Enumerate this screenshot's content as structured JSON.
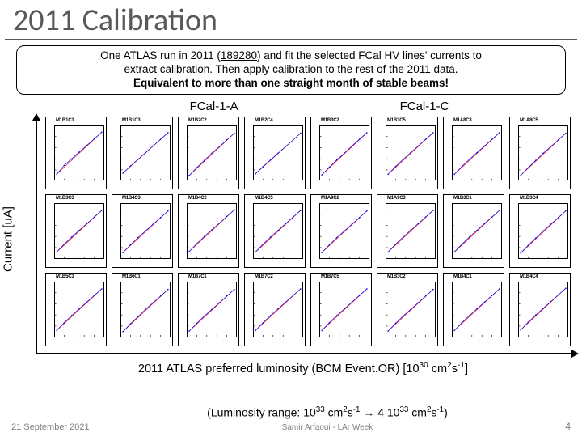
{
  "title": "2011 Calibration",
  "description": {
    "line1a": "One ATLAS run in 2011 (",
    "run": "189280",
    "line1b": ") and fit the selected FCal HV lines' currents to",
    "line2": "extract calibration. Then apply calibration to the rest of the 2011 data.",
    "line3": "Equivalent to more than one straight month of stable beams!"
  },
  "sections": {
    "left": "FCal-1-A",
    "right": "FCal-1-C"
  },
  "yaxis_label": "Current [uA]",
  "xaxis_title_a": "2011 ATLAS preferred luminosity (BCM Event.OR)  [10",
  "xaxis_title_b": " cm",
  "xaxis_title_c": "s",
  "xaxis_title_d": "]",
  "lumi_range": {
    "a": "(Luminosity range: 10",
    "b": " cm",
    "c": "s",
    "d": " → 4 10",
    "e": " cm",
    "f": "s",
    "g": ")"
  },
  "footer": {
    "date": "21 September 2021",
    "author": "Samir Arfaoui - LAr Week",
    "page": "4"
  },
  "plots": [
    {
      "label": "M1B1C1",
      "data": [
        [
          0.05,
          0.12
        ],
        [
          0.2,
          0.28
        ],
        [
          0.35,
          0.4
        ],
        [
          0.5,
          0.52
        ],
        [
          0.65,
          0.64
        ],
        [
          0.8,
          0.76
        ],
        [
          0.95,
          0.88
        ]
      ]
    },
    {
      "label": "M1B1C3",
      "data": [
        [
          0.05,
          0.14
        ],
        [
          0.2,
          0.27
        ],
        [
          0.35,
          0.39
        ],
        [
          0.5,
          0.51
        ],
        [
          0.65,
          0.63
        ],
        [
          0.8,
          0.75
        ],
        [
          0.95,
          0.87
        ]
      ]
    },
    {
      "label": "M1B2C2",
      "data": [
        [
          0.05,
          0.1
        ],
        [
          0.2,
          0.24
        ],
        [
          0.35,
          0.37
        ],
        [
          0.5,
          0.5
        ],
        [
          0.65,
          0.62
        ],
        [
          0.8,
          0.74
        ],
        [
          0.95,
          0.86
        ]
      ]
    },
    {
      "label": "M1B2C4",
      "data": [
        [
          0.05,
          0.13
        ],
        [
          0.2,
          0.26
        ],
        [
          0.35,
          0.38
        ],
        [
          0.5,
          0.5
        ],
        [
          0.65,
          0.62
        ],
        [
          0.8,
          0.74
        ],
        [
          0.95,
          0.86
        ]
      ]
    },
    {
      "label": "M1B3C2",
      "data": [
        [
          0.05,
          0.11
        ],
        [
          0.2,
          0.25
        ],
        [
          0.35,
          0.38
        ],
        [
          0.5,
          0.5
        ],
        [
          0.65,
          0.63
        ],
        [
          0.8,
          0.75
        ],
        [
          0.95,
          0.87
        ]
      ]
    },
    {
      "label": "M1B3C5",
      "data": [
        [
          0.05,
          0.12
        ],
        [
          0.2,
          0.26
        ],
        [
          0.35,
          0.39
        ],
        [
          0.5,
          0.51
        ],
        [
          0.65,
          0.63
        ],
        [
          0.8,
          0.75
        ],
        [
          0.95,
          0.87
        ]
      ]
    },
    {
      "label": "M1A8C3",
      "data": [
        [
          0.05,
          0.12
        ],
        [
          0.2,
          0.26
        ],
        [
          0.35,
          0.39
        ],
        [
          0.5,
          0.51
        ],
        [
          0.65,
          0.63
        ],
        [
          0.8,
          0.75
        ],
        [
          0.95,
          0.87
        ]
      ]
    },
    {
      "label": "M1A8C5",
      "data": [
        [
          0.05,
          0.1
        ],
        [
          0.2,
          0.24
        ],
        [
          0.35,
          0.37
        ],
        [
          0.5,
          0.5
        ],
        [
          0.65,
          0.62
        ],
        [
          0.8,
          0.74
        ],
        [
          0.95,
          0.86
        ]
      ]
    },
    {
      "label": "M1B3C3",
      "data": [
        [
          0.05,
          0.12
        ],
        [
          0.2,
          0.26
        ],
        [
          0.35,
          0.39
        ],
        [
          0.5,
          0.51
        ],
        [
          0.65,
          0.63
        ],
        [
          0.8,
          0.75
        ],
        [
          0.95,
          0.87
        ]
      ]
    },
    {
      "label": "M1B4C3",
      "data": [
        [
          0.05,
          0.11
        ],
        [
          0.2,
          0.25
        ],
        [
          0.35,
          0.38
        ],
        [
          0.5,
          0.5
        ],
        [
          0.65,
          0.62
        ],
        [
          0.8,
          0.74
        ],
        [
          0.95,
          0.86
        ]
      ]
    },
    {
      "label": "M1B4C2",
      "data": [
        [
          0.05,
          0.13
        ],
        [
          0.2,
          0.27
        ],
        [
          0.35,
          0.4
        ],
        [
          0.5,
          0.52
        ],
        [
          0.65,
          0.64
        ],
        [
          0.8,
          0.76
        ],
        [
          0.95,
          0.88
        ]
      ]
    },
    {
      "label": "M1B4C5",
      "data": [
        [
          0.05,
          0.12
        ],
        [
          0.2,
          0.26
        ],
        [
          0.35,
          0.39
        ],
        [
          0.5,
          0.51
        ],
        [
          0.65,
          0.63
        ],
        [
          0.8,
          0.75
        ],
        [
          0.95,
          0.87
        ]
      ]
    },
    {
      "label": "M1A9C2",
      "data": [
        [
          0.05,
          0.11
        ],
        [
          0.2,
          0.25
        ],
        [
          0.35,
          0.38
        ],
        [
          0.5,
          0.5
        ],
        [
          0.65,
          0.62
        ],
        [
          0.8,
          0.74
        ],
        [
          0.95,
          0.86
        ]
      ]
    },
    {
      "label": "M1A9C3",
      "data": [
        [
          0.05,
          0.12
        ],
        [
          0.2,
          0.26
        ],
        [
          0.35,
          0.39
        ],
        [
          0.5,
          0.51
        ],
        [
          0.65,
          0.63
        ],
        [
          0.8,
          0.75
        ],
        [
          0.95,
          0.87
        ]
      ]
    },
    {
      "label": "M1B3C1",
      "data": [
        [
          0.05,
          0.12
        ],
        [
          0.2,
          0.26
        ],
        [
          0.35,
          0.39
        ],
        [
          0.5,
          0.51
        ],
        [
          0.65,
          0.63
        ],
        [
          0.8,
          0.75
        ],
        [
          0.95,
          0.87
        ]
      ]
    },
    {
      "label": "M1B3C4",
      "data": [
        [
          0.05,
          0.1
        ],
        [
          0.2,
          0.24
        ],
        [
          0.35,
          0.37
        ],
        [
          0.5,
          0.5
        ],
        [
          0.65,
          0.62
        ],
        [
          0.8,
          0.74
        ],
        [
          0.95,
          0.86
        ]
      ]
    },
    {
      "label": "M1B5C3",
      "data": [
        [
          0.05,
          0.12
        ],
        [
          0.2,
          0.26
        ],
        [
          0.35,
          0.39
        ],
        [
          0.5,
          0.51
        ],
        [
          0.65,
          0.63
        ],
        [
          0.8,
          0.75
        ],
        [
          0.95,
          0.87
        ]
      ]
    },
    {
      "label": "M1B6C1",
      "data": [
        [
          0.05,
          0.1
        ],
        [
          0.2,
          0.24
        ],
        [
          0.35,
          0.37
        ],
        [
          0.5,
          0.5
        ],
        [
          0.65,
          0.62
        ],
        [
          0.8,
          0.74
        ],
        [
          0.95,
          0.86
        ]
      ]
    },
    {
      "label": "M1B7C1",
      "data": [
        [
          0.05,
          0.11
        ],
        [
          0.2,
          0.25
        ],
        [
          0.35,
          0.38
        ],
        [
          0.5,
          0.5
        ],
        [
          0.65,
          0.62
        ],
        [
          0.8,
          0.74
        ],
        [
          0.95,
          0.86
        ]
      ]
    },
    {
      "label": "M1B7C2",
      "data": [
        [
          0.05,
          0.12
        ],
        [
          0.2,
          0.26
        ],
        [
          0.35,
          0.39
        ],
        [
          0.5,
          0.51
        ],
        [
          0.65,
          0.63
        ],
        [
          0.8,
          0.75
        ],
        [
          0.95,
          0.87
        ]
      ]
    },
    {
      "label": "M1B7C5",
      "data": [
        [
          0.05,
          0.12
        ],
        [
          0.2,
          0.26
        ],
        [
          0.35,
          0.39
        ],
        [
          0.5,
          0.51
        ],
        [
          0.65,
          0.63
        ],
        [
          0.8,
          0.75
        ],
        [
          0.95,
          0.87
        ]
      ]
    },
    {
      "label": "M1B3C2",
      "data": [
        [
          0.05,
          0.11
        ],
        [
          0.2,
          0.25
        ],
        [
          0.35,
          0.38
        ],
        [
          0.5,
          0.5
        ],
        [
          0.65,
          0.62
        ],
        [
          0.8,
          0.74
        ],
        [
          0.95,
          0.86
        ]
      ]
    },
    {
      "label": "M1B4C1",
      "data": [
        [
          0.05,
          0.12
        ],
        [
          0.2,
          0.26
        ],
        [
          0.35,
          0.39
        ],
        [
          0.5,
          0.51
        ],
        [
          0.65,
          0.63
        ],
        [
          0.8,
          0.75
        ],
        [
          0.95,
          0.87
        ]
      ]
    },
    {
      "label": "M1B4C4",
      "data": [
        [
          0.05,
          0.13
        ],
        [
          0.2,
          0.27
        ],
        [
          0.35,
          0.4
        ],
        [
          0.5,
          0.52
        ],
        [
          0.65,
          0.64
        ],
        [
          0.8,
          0.76
        ],
        [
          0.95,
          0.88
        ]
      ]
    }
  ],
  "style": {
    "line_color": "#0000ff",
    "marker_color": "#0000ff",
    "marker_size": 1.2,
    "line_width": 1,
    "fit_color": "#ff0000",
    "tick_color": "#000000"
  }
}
